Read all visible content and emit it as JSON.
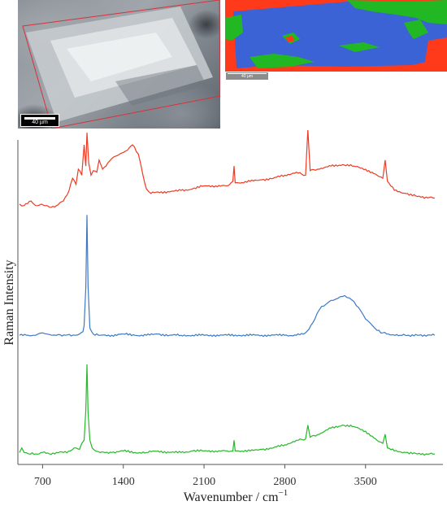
{
  "micrograph": {
    "scale_label": "40 µm"
  },
  "map": {
    "scale_label": "40 µm",
    "colors": {
      "red": "#ff3a1a",
      "blue": "#3b63d6",
      "green": "#21b823"
    }
  },
  "chart_data": {
    "type": "line",
    "xlabel": "Wavenumber / cm",
    "xlabel_sup": "−1",
    "ylabel": "Raman Intensity",
    "xlim": [
      500,
      4150
    ],
    "xticks": [
      700,
      1400,
      2100,
      2800,
      3500
    ],
    "grid": false,
    "series": [
      {
        "color": "#f03a22",
        "offset": 0.78,
        "x": [
          500,
          540,
          600,
          640,
          690,
          720,
          760,
          820,
          880,
          930,
          960,
          990,
          1010,
          1040,
          1060,
          1075,
          1085,
          1100,
          1120,
          1140,
          1170,
          1190,
          1220,
          1250,
          1300,
          1350,
          1420,
          1480,
          1530,
          1570,
          1600,
          1640,
          1700,
          1800,
          1900,
          2000,
          2100,
          2200,
          2300,
          2350,
          2360,
          2370,
          2400,
          2500,
          2600,
          2700,
          2800,
          2900,
          2980,
          3000,
          3020,
          3100,
          3200,
          3300,
          3400,
          3500,
          3600,
          3650,
          3670,
          3690,
          3750,
          3850,
          3950,
          4100
        ],
        "y": [
          0.03,
          0.02,
          0.05,
          0.02,
          0.03,
          0.02,
          0.01,
          0.02,
          0.05,
          0.12,
          0.2,
          0.16,
          0.26,
          0.22,
          0.42,
          0.28,
          0.5,
          0.3,
          0.22,
          0.25,
          0.24,
          0.32,
          0.26,
          0.28,
          0.33,
          0.35,
          0.38,
          0.42,
          0.36,
          0.22,
          0.13,
          0.1,
          0.11,
          0.11,
          0.12,
          0.13,
          0.15,
          0.15,
          0.15,
          0.18,
          0.28,
          0.17,
          0.17,
          0.18,
          0.19,
          0.2,
          0.22,
          0.24,
          0.22,
          0.52,
          0.25,
          0.26,
          0.28,
          0.29,
          0.28,
          0.26,
          0.22,
          0.2,
          0.32,
          0.18,
          0.12,
          0.1,
          0.08,
          0.07
        ]
      },
      {
        "color": "#3f78c2",
        "offset": 0.38,
        "x": [
          500,
          560,
          620,
          660,
          700,
          740,
          780,
          820,
          900,
          980,
          1020,
          1050,
          1060,
          1075,
          1085,
          1095,
          1110,
          1140,
          1200,
          1300,
          1400,
          1500,
          1600,
          1700,
          1800,
          1900,
          2000,
          2100,
          2300,
          2400,
          2600,
          2800,
          2900,
          2960,
          2990,
          3010,
          3040,
          3080,
          3120,
          3160,
          3200,
          3240,
          3280,
          3320,
          3360,
          3400,
          3440,
          3480,
          3520,
          3560,
          3580,
          3600,
          3650,
          3700,
          3800,
          3950,
          4100
        ],
        "y": [
          0.0,
          0.0,
          0.0,
          0.01,
          0.02,
          0.01,
          0.0,
          0.0,
          0.0,
          0.0,
          0.01,
          0.03,
          0.08,
          0.4,
          1.0,
          0.4,
          0.06,
          0.01,
          0.0,
          0.0,
          0.01,
          0.0,
          0.0,
          0.01,
          0.0,
          0.0,
          0.0,
          0.0,
          0.0,
          0.0,
          0.0,
          0.0,
          0.0,
          0.01,
          0.03,
          0.05,
          0.1,
          0.18,
          0.24,
          0.26,
          0.29,
          0.3,
          0.32,
          0.33,
          0.31,
          0.28,
          0.23,
          0.17,
          0.12,
          0.08,
          0.06,
          0.04,
          0.02,
          0.01,
          0.0,
          0.0,
          0.0
        ]
      },
      {
        "color": "#27b82b",
        "offset": 0.0,
        "x": [
          500,
          520,
          540,
          580,
          640,
          700,
          760,
          820,
          880,
          940,
          990,
          1020,
          1040,
          1060,
          1075,
          1085,
          1095,
          1110,
          1130,
          1160,
          1200,
          1300,
          1400,
          1500,
          1600,
          1700,
          1800,
          1900,
          2000,
          2100,
          2200,
          2300,
          2350,
          2360,
          2370,
          2400,
          2500,
          2600,
          2700,
          2800,
          2900,
          2980,
          3000,
          3020,
          3100,
          3200,
          3300,
          3400,
          3500,
          3600,
          3650,
          3670,
          3690,
          3750,
          3850,
          3950,
          4100
        ],
        "y": [
          0.02,
          0.05,
          0.02,
          0.01,
          0.01,
          0.02,
          0.01,
          0.02,
          0.02,
          0.03,
          0.05,
          0.04,
          0.08,
          0.1,
          0.3,
          0.6,
          0.28,
          0.1,
          0.05,
          0.03,
          0.02,
          0.02,
          0.03,
          0.02,
          0.02,
          0.03,
          0.02,
          0.02,
          0.03,
          0.03,
          0.03,
          0.03,
          0.03,
          0.1,
          0.03,
          0.03,
          0.03,
          0.04,
          0.05,
          0.07,
          0.1,
          0.11,
          0.2,
          0.12,
          0.14,
          0.18,
          0.2,
          0.19,
          0.16,
          0.1,
          0.08,
          0.14,
          0.05,
          0.03,
          0.02,
          0.01,
          0.01
        ]
      }
    ]
  }
}
